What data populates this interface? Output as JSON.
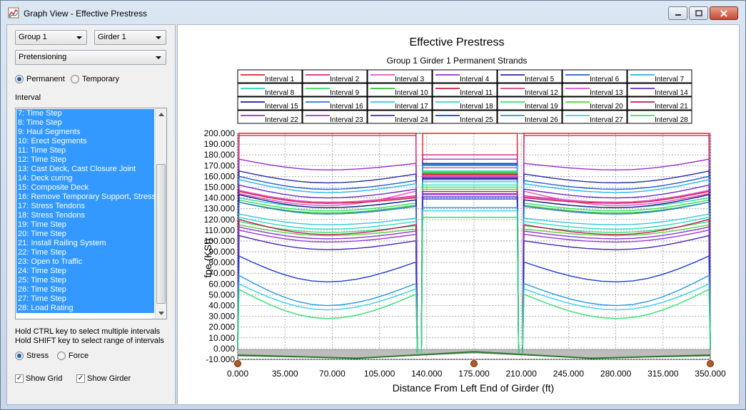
{
  "window": {
    "title": "Graph View - Effective Prestress"
  },
  "controls": {
    "group_select": "Group 1",
    "girder_select": "Girder 1",
    "strand_type_select": "Pretensioning",
    "strands_permanent": "Permanent",
    "strands_temporary": "Temporary",
    "interval_label": "Interval",
    "intervals": [
      "7: Time Step",
      "8: Time Step",
      "9: Haul Segments",
      "10: Erect Segments",
      "11: Time Step",
      "12: Time Step",
      "13: Cast Deck, Cast Closure Joint",
      "14: Deck curing",
      "15: Composite Deck",
      "16: Remove Temporary Support, Stress",
      "17: Stress Tendons",
      "18: Stress Tendons",
      "19: Time Step",
      "20: Time Step",
      "21: Install Railing System",
      "22: Time Step",
      "23: Open to Traffic",
      "24: Time Step",
      "25: Time Step",
      "26: Time Step",
      "27: Time Step",
      "28: Load Rating"
    ],
    "hint_ctrl": "Hold CTRL key to select multiple intervals",
    "hint_shift": "Hold SHIFT key to select range of intervals",
    "stress_label": "Stress",
    "force_label": "Force",
    "show_grid_label": "Show Grid",
    "show_girder_label": "Show Girder"
  },
  "colors": {
    "selection": "#3399ff",
    "title_text": "#000000"
  },
  "chart_data": {
    "type": "line",
    "title": "Effective Prestress",
    "subtitle": "Group 1 Girder 1 Permanent Strands",
    "xlabel": "Distance From Left End of Girder (ft)",
    "ylabel": "fpe (KSI)",
    "xlim": [
      0,
      350
    ],
    "ylim": [
      -10,
      200
    ],
    "grid": true,
    "legend_location": "top",
    "x_ticks": [
      "0.000",
      "35.000",
      "70.000",
      "105.000",
      "140.000",
      "175.000",
      "210.000",
      "245.000",
      "280.000",
      "315.000",
      "350.000"
    ],
    "y_ticks": [
      "200.000",
      "190.000",
      "180.000",
      "170.000",
      "160.000",
      "150.000",
      "140.000",
      "130.000",
      "120.000",
      "110.000",
      "100.000",
      "90.000",
      "80.000",
      "70.000",
      "60.000",
      "50.000",
      "40.000",
      "30.000",
      "20.000",
      "10.000",
      "0.000",
      "-10.000"
    ],
    "segment_breaks": {
      "left_end": 132,
      "right_start": 212,
      "support_x": [
        0,
        175,
        350
      ]
    },
    "series": [
      {
        "name": "Interval 1",
        "color": "#e8202a",
        "outer": [
          200,
          200,
          200
        ],
        "middle": 200
      },
      {
        "name": "Interval 2",
        "color": "#e0207a",
        "outer": [
          198,
          198,
          198
        ],
        "middle": 180
      },
      {
        "name": "Interval 3",
        "color": "#ea4bc8",
        "outer": [
          144,
          133,
          146
        ],
        "middle": 168
      },
      {
        "name": "Interval 4",
        "color": "#9a2ccc",
        "outer": [
          176,
          166,
          172
        ],
        "middle": 176
      },
      {
        "name": "Interval 5",
        "color": "#2a2aa8",
        "outer": [
          165,
          154,
          162
        ],
        "middle": 172
      },
      {
        "name": "Interval 6",
        "color": "#1f5fd0",
        "outer": [
          160,
          148,
          156
        ],
        "middle": 171
      },
      {
        "name": "Interval 7",
        "color": "#23b4e8",
        "outer": [
          157,
          145,
          153
        ],
        "middle": 170
      },
      {
        "name": "Interval 8",
        "color": "#28d8b0",
        "outer": [
          140,
          131,
          138
        ],
        "middle": 165
      },
      {
        "name": "Interval 9",
        "color": "#2ee05a",
        "outer": [
          138,
          128,
          135
        ],
        "middle": 164
      },
      {
        "name": "Interval 10",
        "color": "#2fc030",
        "outer": [
          136,
          126,
          133
        ],
        "middle": 163
      },
      {
        "name": "Interval 11",
        "color": "#d4182c",
        "outer": [
          146,
          135,
          140
        ],
        "middle": 162
      },
      {
        "name": "Interval 12",
        "color": "#e33d84",
        "outer": [
          147,
          136,
          142
        ],
        "middle": 161
      },
      {
        "name": "Interval 13",
        "color": "#e24fd8",
        "outer": [
          147,
          136,
          141
        ],
        "middle": 160
      },
      {
        "name": "Interval 14",
        "color": "#6a2cc0",
        "outer": [
          152,
          140,
          148
        ],
        "middle": 159
      },
      {
        "name": "Interval 15",
        "color": "#1b1b8c",
        "outer": [
          143,
          131,
          138
        ],
        "middle": 158
      },
      {
        "name": "Interval 16",
        "color": "#2a7ad8",
        "outer": [
          136,
          125,
          132
        ],
        "middle": 157
      },
      {
        "name": "Interval 17",
        "color": "#3ac4e0",
        "outer": [
          125,
          115,
          121
        ],
        "middle": 155
      },
      {
        "name": "Interval 18",
        "color": "#2edcc4",
        "outer": [
          122,
          111,
          118
        ],
        "middle": 152
      },
      {
        "name": "Interval 19",
        "color": "#34e06c",
        "outer": [
          118,
          108,
          114
        ],
        "middle": 150
      },
      {
        "name": "Interval 20",
        "color": "#5ad238",
        "outer": [
          115,
          105,
          111
        ],
        "middle": 148
      },
      {
        "name": "Interval 21",
        "color": "#c0185a",
        "outer": [
          120,
          106,
          115
        ],
        "middle": 146
      },
      {
        "name": "Interval 22",
        "color": "#8a34d8",
        "outer": [
          113,
          102,
          109
        ],
        "middle": 144
      },
      {
        "name": "Interval 23",
        "color": "#9a3ad0",
        "outer": [
          110,
          99,
          106
        ],
        "middle": 143
      },
      {
        "name": "Interval 24",
        "color": "#4a24b8",
        "outer": [
          105,
          92,
          100
        ],
        "middle": 141
      },
      {
        "name": "Interval 25",
        "color": "#1c3ad8",
        "outer": [
          86,
          62,
          80
        ],
        "middle": 139
      },
      {
        "name": "Interval 26",
        "color": "#2898e0",
        "outer": [
          68,
          40,
          60
        ],
        "middle": 131
      },
      {
        "name": "Interval 27",
        "color": "#38d0f0",
        "outer": [
          60,
          36,
          55
        ],
        "middle": 128
      },
      {
        "name": "Interval 28",
        "color": "#30e070",
        "outer": [
          55,
          28,
          50
        ],
        "middle": 122
      }
    ]
  }
}
